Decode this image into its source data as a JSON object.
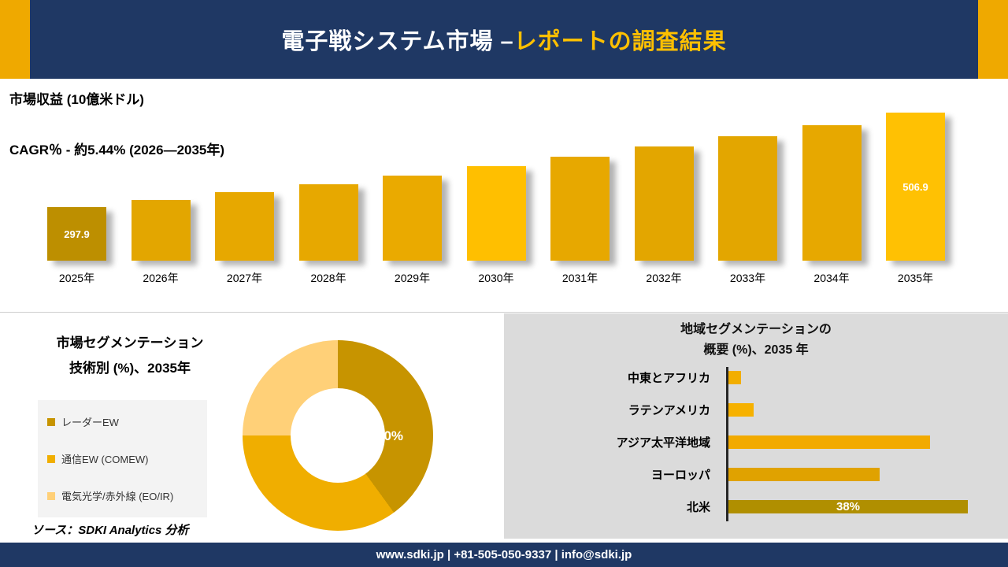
{
  "header": {
    "title_white": "電子戦システム市場 –",
    "title_gold": "レポートの調査結果"
  },
  "revenue_section": {
    "metric_label": "市場収益 (10億米ドル)",
    "cagr_label": "CAGR％ - 約5.44% (2026―2035年)"
  },
  "segmentation_section": {
    "title_line1": "市場セグメンテーション",
    "title_line2": "技術別 (%)、2035年",
    "source": "ソース：SDKI Analytics 分析"
  },
  "region_section": {
    "title_line1": "地域セグメンテーションの",
    "title_line2": "概要 (%)、2035 年"
  },
  "footer": {
    "contact": "www.sdki.jp | +81-505-050-9337 | info@sdki.jp"
  },
  "colors": {
    "navy": "#1F3864",
    "gold": "#EFA900",
    "gold_dark": "#BD8F00",
    "gold_bright": "#FFC000",
    "panel_gray": "#DBDBDB",
    "title_accent": "#FFC000"
  },
  "chart_data": [
    {
      "id": "revenue_by_year",
      "type": "bar",
      "title": "市場収益 (10億米ドル)",
      "ylabel": "10億米ドル",
      "cagr": "CAGR％ - 約5.44% (2026―2035年)",
      "categories": [
        "2025年",
        "2026年",
        "2027年",
        "2028年",
        "2029年",
        "2030年",
        "2031年",
        "2032年",
        "2033年",
        "2034年",
        "2035年"
      ],
      "values": [
        297.9,
        314.1,
        331.2,
        349.2,
        368.2,
        388.2,
        409.3,
        431.6,
        455.1,
        479.9,
        506.9
      ],
      "bar_colors": [
        "#BD8F00",
        "#E3A600",
        "#E7A800",
        "#E7A800",
        "#EAAA00",
        "#FFBF00",
        "#E7A800",
        "#E3A600",
        "#E3A600",
        "#E7A800",
        "#FFC103"
      ],
      "value_labels": {
        "0": "297.9",
        "10": "506.9"
      },
      "grid": false,
      "legend": false
    },
    {
      "id": "technology_share",
      "type": "pie",
      "title": "市場セグメンテーション 技術別 (%)、2035年",
      "labels": [
        "レーダーEW",
        "通信EW (COMEW)",
        "電気光学/赤外線 (EO/IR)"
      ],
      "values": [
        40,
        35,
        25
      ],
      "colors": [
        "#C79400",
        "#F0AE00",
        "#FFD078"
      ],
      "center_label": "40%",
      "legend_position": "left",
      "donut": true
    },
    {
      "id": "region_share",
      "type": "bar",
      "orientation": "horizontal",
      "title": "地域セグメンテーションの概要 (%)、2035 年",
      "categories": [
        "中東とアフリカ",
        "ラテンアメリカ",
        "アジア太平洋地域",
        "ヨーロッパ",
        "北米"
      ],
      "values": [
        2,
        4,
        32,
        24,
        38
      ],
      "bar_colors": [
        "#F2AE00",
        "#F6B100",
        "#F2AA00",
        "#E0A200",
        "#B08F00"
      ],
      "value_labels": {
        "4": "38%"
      },
      "xlim": [
        0,
        40
      ],
      "grid": false,
      "legend": false
    }
  ]
}
